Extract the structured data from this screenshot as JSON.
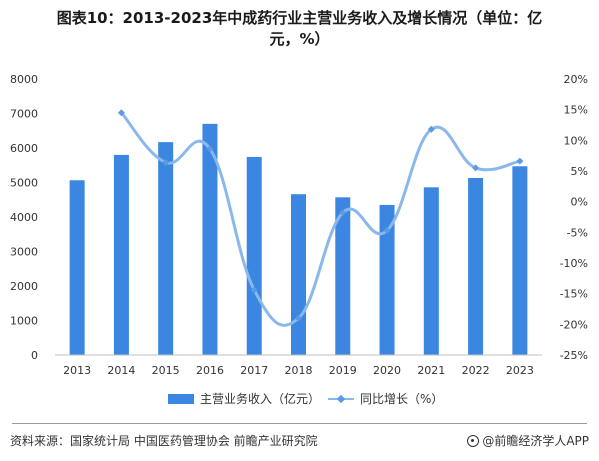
{
  "title": {
    "line1": "图表10：2013-2023年中成药行业主营业务收入及增长情况（单位：亿",
    "line2": "元，%）"
  },
  "colors": {
    "bar": "#3a86e0",
    "line": "#8ab8ec",
    "marker": "#5a9be6"
  },
  "chart_data": {
    "type": "bar",
    "categories": [
      "2013",
      "2014",
      "2015",
      "2016",
      "2017",
      "2018",
      "2019",
      "2020",
      "2021",
      "2022",
      "2023"
    ],
    "series": [
      {
        "name": "主营业务收入（亿元）",
        "type": "bar",
        "axis": "left",
        "values": [
          5065,
          5800,
          6170,
          6700,
          5740,
          4660,
          4570,
          4350,
          4860,
          5130,
          5470
        ]
      },
      {
        "name": "同比增长（%）",
        "type": "line",
        "axis": "right",
        "values": [
          null,
          14.5,
          6.4,
          8.6,
          -14.4,
          -19.0,
          -1.8,
          -4.7,
          11.8,
          5.5,
          6.6
        ]
      }
    ],
    "y_left": {
      "ylim": [
        0,
        8000
      ],
      "ticks": [
        "0",
        "1000",
        "2000",
        "3000",
        "4000",
        "5000",
        "6000",
        "7000",
        "8000"
      ]
    },
    "y_right": {
      "ylim": [
        -25,
        20
      ],
      "ticks": [
        "-25%",
        "-20%",
        "-15%",
        "-10%",
        "-5%",
        "0%",
        "5%",
        "10%",
        "15%",
        "20%"
      ]
    },
    "legend_position": "bottom",
    "grid": false
  },
  "footer": {
    "source": "资料来源：国家统计局 中国医药管理协会 前瞻产业研究院",
    "brand": "@前瞻经济学人APP"
  }
}
